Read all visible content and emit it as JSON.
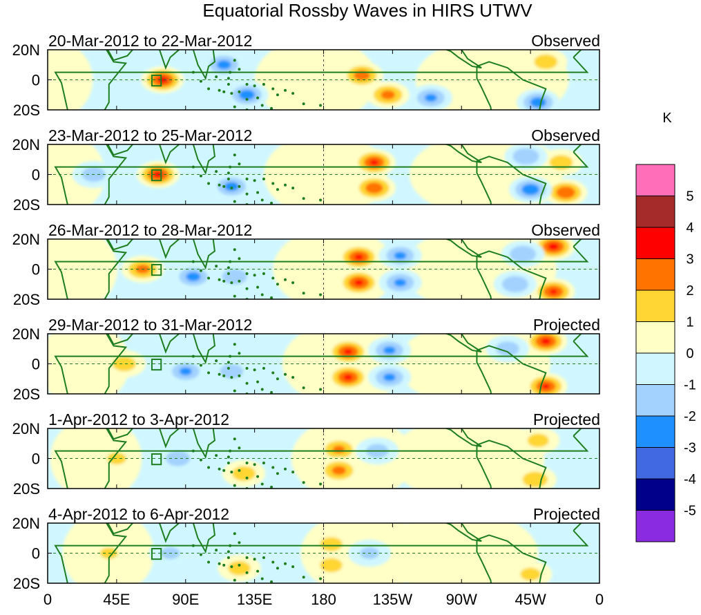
{
  "chart_data": {
    "type": "heatmap",
    "title": "Equatorial Rossby Waves in HIRS UTWV",
    "colorbar": {
      "unit": "K",
      "levels": [
        "5",
        "4",
        "3",
        "2",
        "1",
        "0",
        "-1",
        "-2",
        "-3",
        "-4",
        "-5"
      ],
      "colors": [
        "#ff6fb9",
        "#a52a2a",
        "#ff0000",
        "#ff7300",
        "#ffd633",
        "#ffffc6",
        "#d0f7ff",
        "#a3d2ff",
        "#1e90ff",
        "#4169e1",
        "#00008b",
        "#8a2be2"
      ]
    },
    "y_ticks": [
      "20N",
      "0",
      "20S"
    ],
    "ylim": [
      -20,
      20
    ],
    "x_ticks": [
      "0",
      "45E",
      "90E",
      "135E",
      "180",
      "135W",
      "90W",
      "45W",
      "0"
    ],
    "xlim": [
      0,
      360
    ],
    "panels": [
      {
        "date_range": "20-Mar-2012 to 22-Mar-2012",
        "status": "Observed",
        "anomalies": [
          {
            "lon": 75,
            "lat": 0,
            "value": 3.4
          },
          {
            "lon": 205,
            "lat": 3,
            "value": 2.6
          },
          {
            "lon": 222,
            "lat": -10,
            "value": 2.4
          },
          {
            "lon": 130,
            "lat": -10,
            "value": -2.6
          },
          {
            "lon": 115,
            "lat": 10,
            "value": -2.4
          },
          {
            "lon": 250,
            "lat": -12,
            "value": -2.2
          },
          {
            "lon": 320,
            "lat": -15,
            "value": -2.6
          },
          {
            "lon": 325,
            "lat": 12,
            "value": 1.6
          }
        ]
      },
      {
        "date_range": "23-Mar-2012 to 25-Mar-2012",
        "status": "Observed",
        "anomalies": [
          {
            "lon": 72,
            "lat": 0,
            "value": 3.3
          },
          {
            "lon": 213,
            "lat": 8,
            "value": 3.2
          },
          {
            "lon": 213,
            "lat": -9,
            "value": 2.8
          },
          {
            "lon": 120,
            "lat": -8,
            "value": -2.4
          },
          {
            "lon": 30,
            "lat": 0,
            "value": -1.6
          },
          {
            "lon": 335,
            "lat": 8,
            "value": 1.6
          },
          {
            "lon": 338,
            "lat": -12,
            "value": 3.0
          },
          {
            "lon": 315,
            "lat": -10,
            "value": -2.8
          },
          {
            "lon": 312,
            "lat": 12,
            "value": -2.0
          }
        ]
      },
      {
        "date_range": "26-Mar-2012 to 28-Mar-2012",
        "status": "Observed",
        "anomalies": [
          {
            "lon": 62,
            "lat": 0,
            "value": 2.4
          },
          {
            "lon": 95,
            "lat": -5,
            "value": -2.4
          },
          {
            "lon": 122,
            "lat": -5,
            "value": -1.8
          },
          {
            "lon": 203,
            "lat": 8,
            "value": 3.2
          },
          {
            "lon": 203,
            "lat": -9,
            "value": 3.2
          },
          {
            "lon": 230,
            "lat": 9,
            "value": -2.2
          },
          {
            "lon": 230,
            "lat": -9,
            "value": -2.2
          },
          {
            "lon": 330,
            "lat": 15,
            "value": 3.4
          },
          {
            "lon": 330,
            "lat": -15,
            "value": 3.1
          },
          {
            "lon": 310,
            "lat": 10,
            "value": -2.0
          },
          {
            "lon": 305,
            "lat": -10,
            "value": -2.0
          }
        ]
      },
      {
        "date_range": "29-Mar-2012 to 31-Mar-2012",
        "status": "Projected",
        "anomalies": [
          {
            "lon": 50,
            "lat": 0,
            "value": 1.6
          },
          {
            "lon": 90,
            "lat": -5,
            "value": -2.2
          },
          {
            "lon": 120,
            "lat": -5,
            "value": -1.6
          },
          {
            "lon": 196,
            "lat": 8,
            "value": 3.2
          },
          {
            "lon": 196,
            "lat": -9,
            "value": 3.2
          },
          {
            "lon": 223,
            "lat": 9,
            "value": -2.2
          },
          {
            "lon": 223,
            "lat": -9,
            "value": -2.2
          },
          {
            "lon": 325,
            "lat": 15,
            "value": 3.3
          },
          {
            "lon": 325,
            "lat": -15,
            "value": 3.1
          },
          {
            "lon": 300,
            "lat": 10,
            "value": -1.6
          }
        ]
      },
      {
        "date_range": "1-Apr-2012 to 3-Apr-2012",
        "status": "Projected",
        "anomalies": [
          {
            "lon": 45,
            "lat": 0,
            "value": 1.2
          },
          {
            "lon": 85,
            "lat": 0,
            "value": -1.7
          },
          {
            "lon": 128,
            "lat": -10,
            "value": 1.6
          },
          {
            "lon": 190,
            "lat": 6,
            "value": 2.2
          },
          {
            "lon": 190,
            "lat": -8,
            "value": 2.4
          },
          {
            "lon": 215,
            "lat": 5,
            "value": -1.5
          },
          {
            "lon": 318,
            "lat": -14,
            "value": 1.8
          },
          {
            "lon": 320,
            "lat": 12,
            "value": 1.4
          }
        ]
      },
      {
        "date_range": "4-Apr-2012 to 6-Apr-2012",
        "status": "Projected",
        "anomalies": [
          {
            "lon": 40,
            "lat": 0,
            "value": 1.1
          },
          {
            "lon": 80,
            "lat": 0,
            "value": -1.2
          },
          {
            "lon": 125,
            "lat": -10,
            "value": 1.5
          },
          {
            "lon": 185,
            "lat": 6,
            "value": 1.5
          },
          {
            "lon": 185,
            "lat": -8,
            "value": 1.5
          },
          {
            "lon": 210,
            "lat": 0,
            "value": -1.2
          },
          {
            "lon": 315,
            "lat": -14,
            "value": 1.3
          }
        ]
      }
    ]
  }
}
